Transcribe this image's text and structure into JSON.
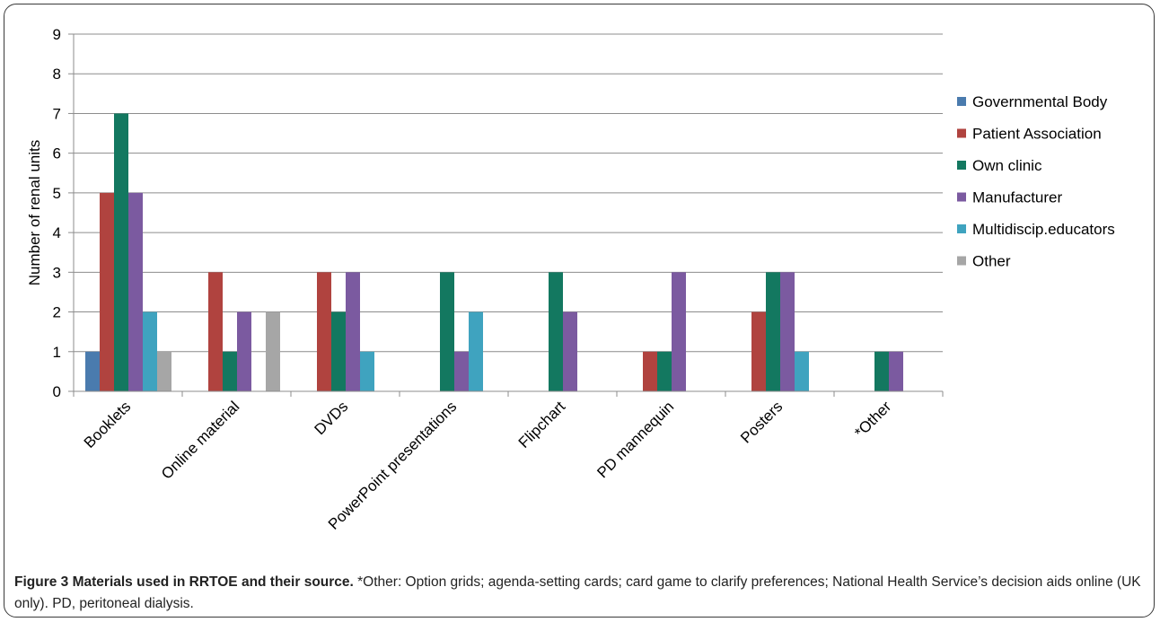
{
  "chart_data": {
    "type": "bar",
    "categories": [
      "Booklets",
      "Online material",
      "DVDs",
      "PowerPoint presentations",
      "Flipchart",
      "PD mannequin",
      "Posters",
      "*Other"
    ],
    "series": [
      {
        "name": "Governmental Body",
        "color": "#4a7bae",
        "values": [
          1,
          0,
          0,
          0,
          0,
          0,
          0,
          0
        ]
      },
      {
        "name": "Patient Association",
        "color": "#b0433f",
        "values": [
          5,
          3,
          3,
          0,
          0,
          1,
          2,
          0
        ]
      },
      {
        "name": "Own clinic",
        "color": "#137860",
        "values": [
          7,
          1,
          2,
          3,
          3,
          1,
          3,
          1
        ]
      },
      {
        "name": "Manufacturer",
        "color": "#7b5aa0",
        "values": [
          5,
          2,
          3,
          1,
          2,
          3,
          3,
          1
        ]
      },
      {
        "name": "Multidiscip.educators",
        "color": "#3fa3bf",
        "values": [
          2,
          0,
          1,
          2,
          0,
          0,
          1,
          0
        ]
      },
      {
        "name": "Other",
        "color": "#a6a6a6",
        "values": [
          1,
          2,
          0,
          0,
          0,
          0,
          0,
          0
        ]
      }
    ],
    "ylabel": "Number of renal units",
    "xlabel": "",
    "ylim": [
      0,
      9
    ],
    "yticks": [
      0,
      1,
      2,
      3,
      4,
      5,
      6,
      7,
      8,
      9
    ],
    "grid": true,
    "legend_position": "right"
  },
  "caption": {
    "title": "Figure 3 Materials used in RRTOE and their source.",
    "text": " *Other: Option grids; agenda-setting cards; card game to clarify preferences; National Health Service’s decision aids online (UK only). PD, peritoneal dialysis."
  }
}
